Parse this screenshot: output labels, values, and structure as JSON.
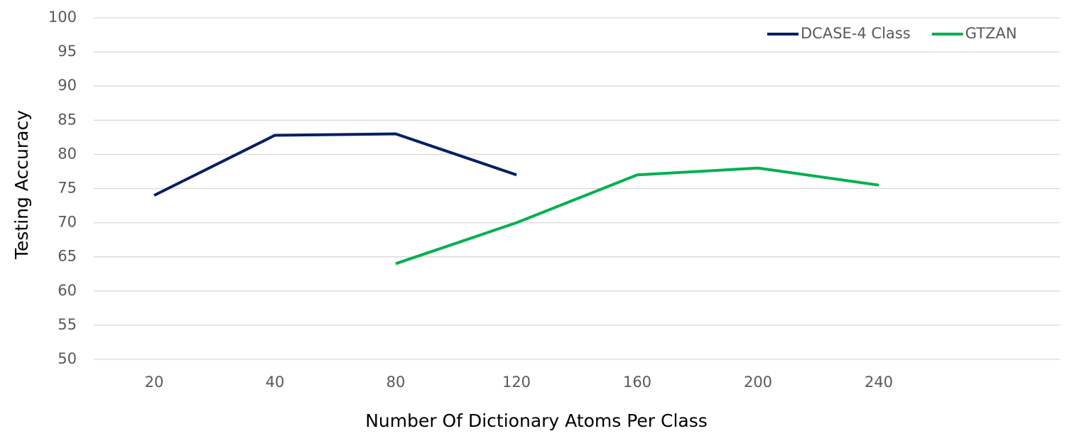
{
  "chart_data": {
    "type": "line",
    "x_label": "Number Of Dictionary Atoms Per Class",
    "y_label": "Testing Accuracy",
    "categories": [
      "20",
      "40",
      "80",
      "120",
      "160",
      "200",
      "240",
      null
    ],
    "series": [
      {
        "name": "DCASE-4 Class",
        "color": "#002060",
        "values": [
          74,
          82.8,
          83,
          77,
          null,
          null,
          null,
          null
        ]
      },
      {
        "name": "GTZAN",
        "color": "#00b050",
        "values": [
          null,
          null,
          64,
          70,
          77,
          78,
          75.5,
          null
        ]
      }
    ],
    "ylim": [
      50,
      100
    ],
    "yticks": [
      50,
      55,
      60,
      65,
      70,
      75,
      80,
      85,
      90,
      95,
      100
    ],
    "grid": true,
    "legend": "top-right"
  }
}
